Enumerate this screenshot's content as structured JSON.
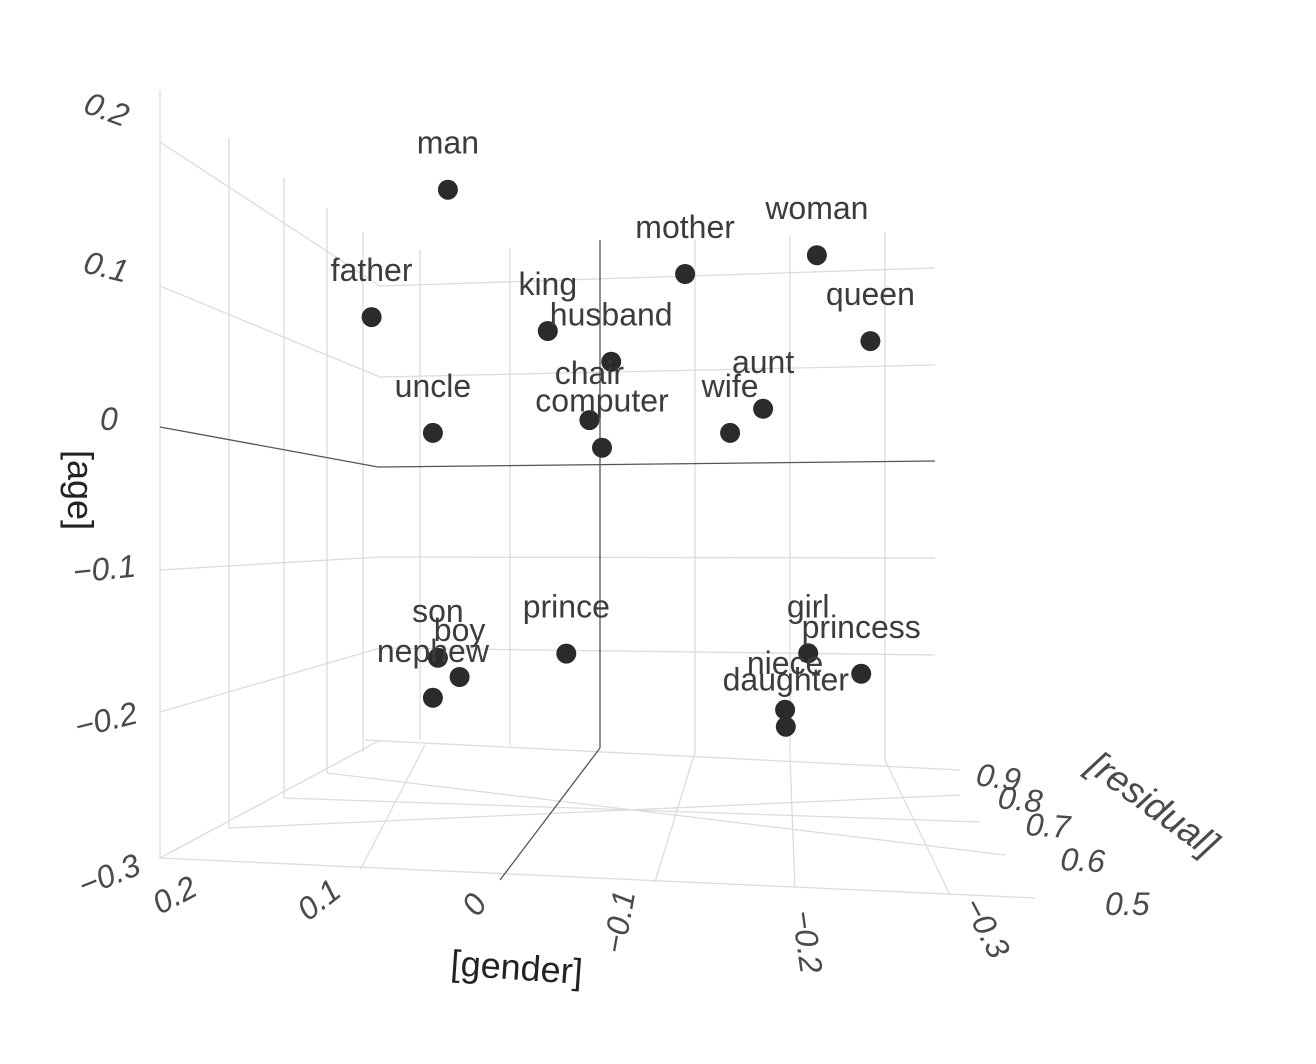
{
  "chart_data": {
    "type": "scatter3d",
    "xlabel": "[gender]",
    "ylabel": "[age]",
    "zlabel": "[residual]",
    "xticks": [
      "0.2",
      "0.1",
      "0",
      "−0.1",
      "−0.2",
      "−0.3"
    ],
    "yticks": [
      "0.2",
      "0.1",
      "0",
      "−0.1",
      "−0.2",
      "−0.3"
    ],
    "zticks": [
      "0.9",
      "0.8",
      "0.7",
      "0.6",
      "0.5"
    ],
    "points": [
      {
        "label": "man",
        "gender": 0.14,
        "age": 0.21,
        "residual": 0.62
      },
      {
        "label": "woman",
        "gender": -0.18,
        "age": 0.17,
        "residual": 0.72
      },
      {
        "label": "mother",
        "gender": -0.06,
        "age": 0.15,
        "residual": 0.68
      },
      {
        "label": "father",
        "gender": 0.24,
        "age": 0.12,
        "residual": 0.75
      },
      {
        "label": "king",
        "gender": 0.1,
        "age": 0.12,
        "residual": 0.9
      },
      {
        "label": "queen",
        "gender": -0.25,
        "age": 0.11,
        "residual": 0.9
      },
      {
        "label": "husband",
        "gender": 0.01,
        "age": 0.08,
        "residual": 0.72
      },
      {
        "label": "aunt",
        "gender": -0.13,
        "age": 0.04,
        "residual": 0.7
      },
      {
        "label": "uncle",
        "gender": 0.17,
        "age": 0.02,
        "residual": 0.7
      },
      {
        "label": "chair",
        "gender": 0.01,
        "age": 0.03,
        "residual": 0.52
      },
      {
        "label": "computer",
        "gender": 0.0,
        "age": 0.01,
        "residual": 0.52
      },
      {
        "label": "wife",
        "gender": -0.1,
        "age": 0.02,
        "residual": 0.7
      },
      {
        "label": "girl",
        "gender": -0.17,
        "age": -0.16,
        "residual": 0.68
      },
      {
        "label": "son",
        "gender": 0.17,
        "age": -0.17,
        "residual": 0.72
      },
      {
        "label": "boy",
        "gender": 0.13,
        "age": -0.17,
        "residual": 0.62
      },
      {
        "label": "nephew",
        "gender": 0.17,
        "age": -0.2,
        "residual": 0.7
      },
      {
        "label": "prince",
        "gender": 0.08,
        "age": -0.2,
        "residual": 0.9
      },
      {
        "label": "niece",
        "gender": -0.15,
        "age": -0.21,
        "residual": 0.7
      },
      {
        "label": "daughter",
        "gender": -0.15,
        "age": -0.22,
        "residual": 0.68
      },
      {
        "label": "princess",
        "gender": -0.24,
        "age": -0.22,
        "residual": 0.9
      }
    ]
  }
}
